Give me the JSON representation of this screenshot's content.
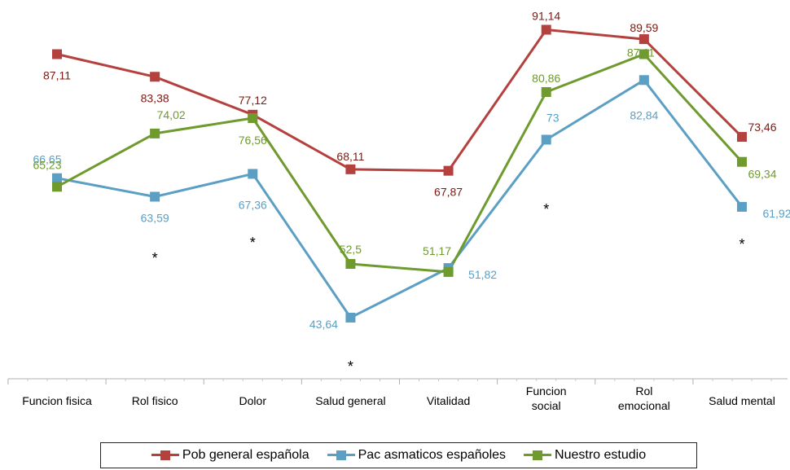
{
  "chart_data": {
    "type": "line",
    "categories": [
      [
        "Funcion fisica"
      ],
      [
        "Rol fisico"
      ],
      [
        "Dolor"
      ],
      [
        "Salud general"
      ],
      [
        "Vitalidad"
      ],
      [
        "Funcion",
        "social"
      ],
      [
        "Rol",
        "emocional"
      ],
      [
        "Salud mental"
      ]
    ],
    "series": [
      {
        "name": "Pob general española",
        "color": "#b5413f",
        "labelColor": "#7a1a12",
        "values": [
          87.11,
          83.38,
          77.12,
          68.11,
          67.87,
          91.14,
          89.59,
          73.46
        ],
        "labels": [
          "87,11",
          "83,38",
          "77,12",
          "68,11",
          "67,87",
          "91,14",
          "89,59",
          "73,46"
        ]
      },
      {
        "name": "Pac asmaticos españoles",
        "color": "#5b9fc4",
        "labelColor": "#5b9fc4",
        "values": [
          66.65,
          63.59,
          67.36,
          43.64,
          51.82,
          73,
          82.84,
          61.92
        ],
        "labels": [
          "66,65",
          "63,59",
          "67,36",
          "43,64",
          "51,82",
          "73",
          "82,84",
          "61,92"
        ]
      },
      {
        "name": "Nuestro estudio",
        "color": "#6e9a2e",
        "labelColor": "#6e9a2e",
        "values": [
          65.23,
          74.02,
          76.56,
          52.5,
          51.17,
          80.86,
          87.11,
          69.34
        ],
        "labels": [
          "65,23",
          "74,02",
          "76,56",
          "52,5",
          "51,17",
          "80,86",
          "87,11",
          "69,34"
        ]
      }
    ],
    "significance_marks": [
      {
        "category_index": 1,
        "symbol": "*"
      },
      {
        "category_index": 2,
        "symbol": "*"
      },
      {
        "category_index": 3,
        "symbol": "*"
      },
      {
        "category_index": 5,
        "symbol": "*"
      },
      {
        "category_index": 7,
        "symbol": "*"
      }
    ],
    "legend": {
      "position": "bottom"
    },
    "grid": false
  }
}
